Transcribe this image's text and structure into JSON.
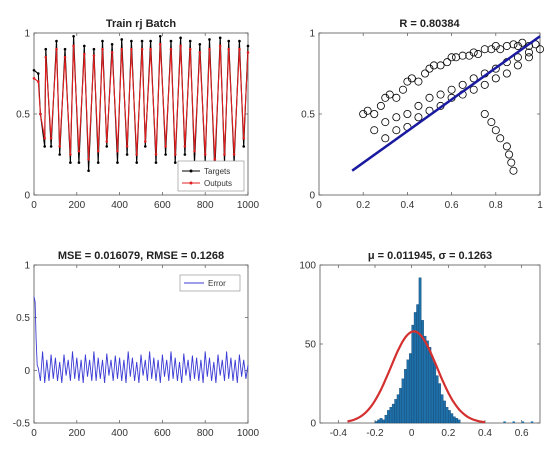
{
  "chart_data": [
    {
      "id": "tl",
      "type": "line",
      "title": "Train rj Batch",
      "xlabel": "",
      "ylabel": "",
      "xlim": [
        0,
        1000
      ],
      "ylim": [
        0,
        1
      ],
      "xticks": [
        0,
        200,
        400,
        600,
        800,
        1000
      ],
      "yticks": [
        0,
        0.5,
        1
      ],
      "legend_position": "bottom-right",
      "series": [
        {
          "name": "Targets",
          "color": "#000000",
          "x": [
            0,
            20,
            30,
            50,
            55,
            80,
            105,
            120,
            145,
            170,
            185,
            210,
            235,
            255,
            280,
            300,
            320,
            340,
            365,
            390,
            410,
            435,
            455,
            480,
            505,
            520,
            545,
            570,
            590,
            615,
            640,
            660,
            685,
            705,
            730,
            750,
            775,
            800,
            820,
            845,
            870,
            890,
            910,
            935,
            960,
            980,
            1000
          ],
          "y": [
            0.77,
            0.75,
            0.5,
            0.3,
            0.9,
            0.3,
            0.95,
            0.25,
            0.9,
            0.2,
            0.98,
            0.2,
            0.92,
            0.15,
            0.9,
            0.2,
            0.95,
            0.3,
            0.93,
            0.2,
            0.96,
            0.25,
            0.95,
            0.2,
            0.95,
            0.3,
            0.95,
            0.2,
            0.98,
            0.25,
            0.95,
            0.2,
            0.97,
            0.25,
            0.95,
            0.2,
            0.93,
            0.2,
            0.96,
            0.15,
            0.97,
            0.2,
            0.95,
            0.2,
            0.95,
            0.3,
            0.92
          ]
        },
        {
          "name": "Outputs",
          "color": "#e02020",
          "x": [
            0,
            20,
            30,
            50,
            55,
            80,
            105,
            120,
            145,
            170,
            185,
            210,
            235,
            255,
            280,
            300,
            320,
            340,
            365,
            390,
            410,
            435,
            455,
            480,
            505,
            520,
            545,
            570,
            590,
            615,
            640,
            660,
            685,
            705,
            730,
            750,
            775,
            800,
            820,
            845,
            870,
            890,
            910,
            935,
            960,
            980,
            1000
          ],
          "y": [
            0.72,
            0.7,
            0.5,
            0.35,
            0.85,
            0.35,
            0.9,
            0.3,
            0.85,
            0.25,
            0.92,
            0.27,
            0.87,
            0.22,
            0.86,
            0.27,
            0.9,
            0.33,
            0.88,
            0.27,
            0.9,
            0.3,
            0.9,
            0.25,
            0.9,
            0.33,
            0.9,
            0.25,
            0.93,
            0.3,
            0.9,
            0.25,
            0.92,
            0.3,
            0.9,
            0.27,
            0.88,
            0.25,
            0.9,
            0.22,
            0.92,
            0.25,
            0.9,
            0.25,
            0.9,
            0.35,
            0.88
          ]
        }
      ]
    },
    {
      "id": "tr",
      "type": "scatter",
      "title": "R = 0.80384",
      "xlabel": "",
      "ylabel": "",
      "xlim": [
        0,
        1
      ],
      "ylim": [
        0,
        1
      ],
      "xticks": [
        0,
        0.2,
        0.4,
        0.6,
        0.8,
        1
      ],
      "yticks": [
        0,
        0.5,
        1
      ],
      "points": {
        "color": "#000000",
        "x": [
          0.2,
          0.22,
          0.25,
          0.28,
          0.3,
          0.32,
          0.35,
          0.38,
          0.4,
          0.42,
          0.45,
          0.48,
          0.5,
          0.52,
          0.55,
          0.58,
          0.6,
          0.62,
          0.65,
          0.68,
          0.7,
          0.72,
          0.75,
          0.78,
          0.8,
          0.82,
          0.85,
          0.88,
          0.9,
          0.92,
          0.95,
          0.98,
          0.3,
          0.35,
          0.4,
          0.45,
          0.5,
          0.55,
          0.6,
          0.65,
          0.7,
          0.75,
          0.8,
          0.85,
          0.9,
          0.95,
          0.25,
          0.3,
          0.35,
          0.4,
          0.45,
          0.5,
          0.55,
          0.6,
          0.65,
          0.7,
          0.75,
          0.8,
          0.85,
          0.9,
          0.95,
          1.0,
          0.75,
          0.78,
          0.8,
          0.82,
          0.85,
          0.86,
          0.87,
          0.88
        ],
        "y": [
          0.5,
          0.52,
          0.5,
          0.55,
          0.6,
          0.62,
          0.6,
          0.65,
          0.7,
          0.72,
          0.7,
          0.75,
          0.78,
          0.8,
          0.8,
          0.82,
          0.85,
          0.85,
          0.86,
          0.86,
          0.88,
          0.87,
          0.9,
          0.9,
          0.92,
          0.9,
          0.92,
          0.93,
          0.92,
          0.94,
          0.92,
          0.93,
          0.35,
          0.4,
          0.42,
          0.48,
          0.52,
          0.55,
          0.6,
          0.62,
          0.65,
          0.68,
          0.72,
          0.75,
          0.8,
          0.85,
          0.4,
          0.45,
          0.48,
          0.5,
          0.55,
          0.6,
          0.62,
          0.65,
          0.68,
          0.72,
          0.75,
          0.78,
          0.82,
          0.85,
          0.88,
          0.9,
          0.5,
          0.45,
          0.4,
          0.35,
          0.3,
          0.25,
          0.2,
          0.15
        ]
      },
      "fit_line": {
        "color": "#1a1aa0",
        "x": [
          0.15,
          1.0
        ],
        "y": [
          0.15,
          0.98
        ]
      }
    },
    {
      "id": "bl",
      "type": "line",
      "title": "MSE = 0.016079, RMSE = 0.1268",
      "xlabel": "",
      "ylabel": "",
      "xlim": [
        0,
        1000
      ],
      "ylim": [
        -0.5,
        1
      ],
      "xticks": [
        0,
        200,
        400,
        600,
        800,
        1000
      ],
      "yticks": [
        -0.5,
        0,
        0.5,
        1
      ],
      "legend_position": "top-right",
      "series": [
        {
          "name": "Error",
          "color": "#3b3bd6",
          "x": [
            0,
            5,
            10,
            15,
            20,
            30,
            40,
            50,
            60,
            70,
            80,
            90,
            100,
            110,
            120,
            130,
            140,
            150,
            160,
            170,
            180,
            190,
            200,
            210,
            220,
            230,
            240,
            250,
            260,
            270,
            280,
            290,
            300,
            310,
            320,
            330,
            340,
            350,
            360,
            370,
            380,
            390,
            400,
            410,
            420,
            430,
            440,
            450,
            460,
            470,
            480,
            490,
            500,
            510,
            520,
            530,
            540,
            550,
            560,
            570,
            580,
            590,
            600,
            610,
            620,
            630,
            640,
            650,
            660,
            670,
            680,
            690,
            700,
            710,
            720,
            730,
            740,
            750,
            760,
            770,
            780,
            790,
            800,
            810,
            820,
            830,
            840,
            850,
            860,
            870,
            880,
            890,
            900,
            910,
            920,
            930,
            940,
            950,
            960,
            970,
            980,
            990,
            1000
          ],
          "y": [
            0.7,
            0.65,
            0.3,
            0.05,
            0.02,
            -0.1,
            0.18,
            -0.12,
            0.1,
            -0.1,
            0.15,
            -0.08,
            0.12,
            -0.1,
            0.08,
            -0.12,
            0.15,
            -0.05,
            0.1,
            -0.1,
            0.18,
            -0.08,
            0.12,
            -0.1,
            0.1,
            -0.12,
            0.15,
            -0.06,
            0.1,
            -0.1,
            0.18,
            -0.1,
            0.12,
            -0.08,
            0.1,
            -0.12,
            0.16,
            -0.05,
            0.1,
            -0.1,
            0.14,
            -0.08,
            0.12,
            -0.1,
            0.1,
            -0.12,
            0.18,
            -0.06,
            0.12,
            -0.1,
            0.08,
            -0.12,
            0.15,
            -0.05,
            0.1,
            -0.1,
            0.18,
            -0.08,
            0.12,
            -0.1,
            0.1,
            -0.12,
            0.15,
            -0.06,
            0.1,
            -0.1,
            0.18,
            -0.08,
            0.12,
            -0.1,
            0.08,
            -0.12,
            0.16,
            -0.05,
            0.1,
            -0.1,
            0.14,
            -0.08,
            0.12,
            -0.1,
            0.1,
            -0.12,
            0.18,
            -0.06,
            0.12,
            -0.1,
            0.08,
            -0.12,
            0.15,
            -0.05,
            0.1,
            -0.1,
            0.18,
            -0.08,
            0.12,
            -0.1,
            0.1,
            -0.12,
            0.15,
            -0.06,
            0.1,
            -0.08,
            0.05
          ]
        }
      ]
    },
    {
      "id": "br",
      "type": "bar",
      "title": "μ = 0.011945, σ = 0.1263",
      "xlabel": "",
      "ylabel": "",
      "xlim": [
        -0.5,
        0.7
      ],
      "ylim": [
        0,
        100
      ],
      "xticks": [
        -0.4,
        -0.2,
        0,
        0.2,
        0.4,
        0.6
      ],
      "yticks": [
        0,
        50,
        100
      ],
      "bar_color": "#1f6fa8",
      "bins": {
        "start": -0.2,
        "width": 0.0133,
        "counts": [
          1,
          2,
          3,
          2,
          5,
          8,
          10,
          12,
          15,
          18,
          22,
          28,
          34,
          40,
          44,
          62,
          70,
          75,
          92,
          65,
          55,
          52,
          48,
          42,
          38,
          30,
          25,
          18,
          14,
          10,
          8,
          6,
          4,
          3,
          2
        ]
      },
      "outliers": {
        "x": [
          0.5,
          0.55,
          0.6,
          0.65
        ],
        "counts": [
          1,
          1,
          1,
          1
        ]
      },
      "fit_curve": {
        "color": "#d43030",
        "mu": 0.011945,
        "sigma": 0.1263,
        "peak": 58
      }
    }
  ]
}
